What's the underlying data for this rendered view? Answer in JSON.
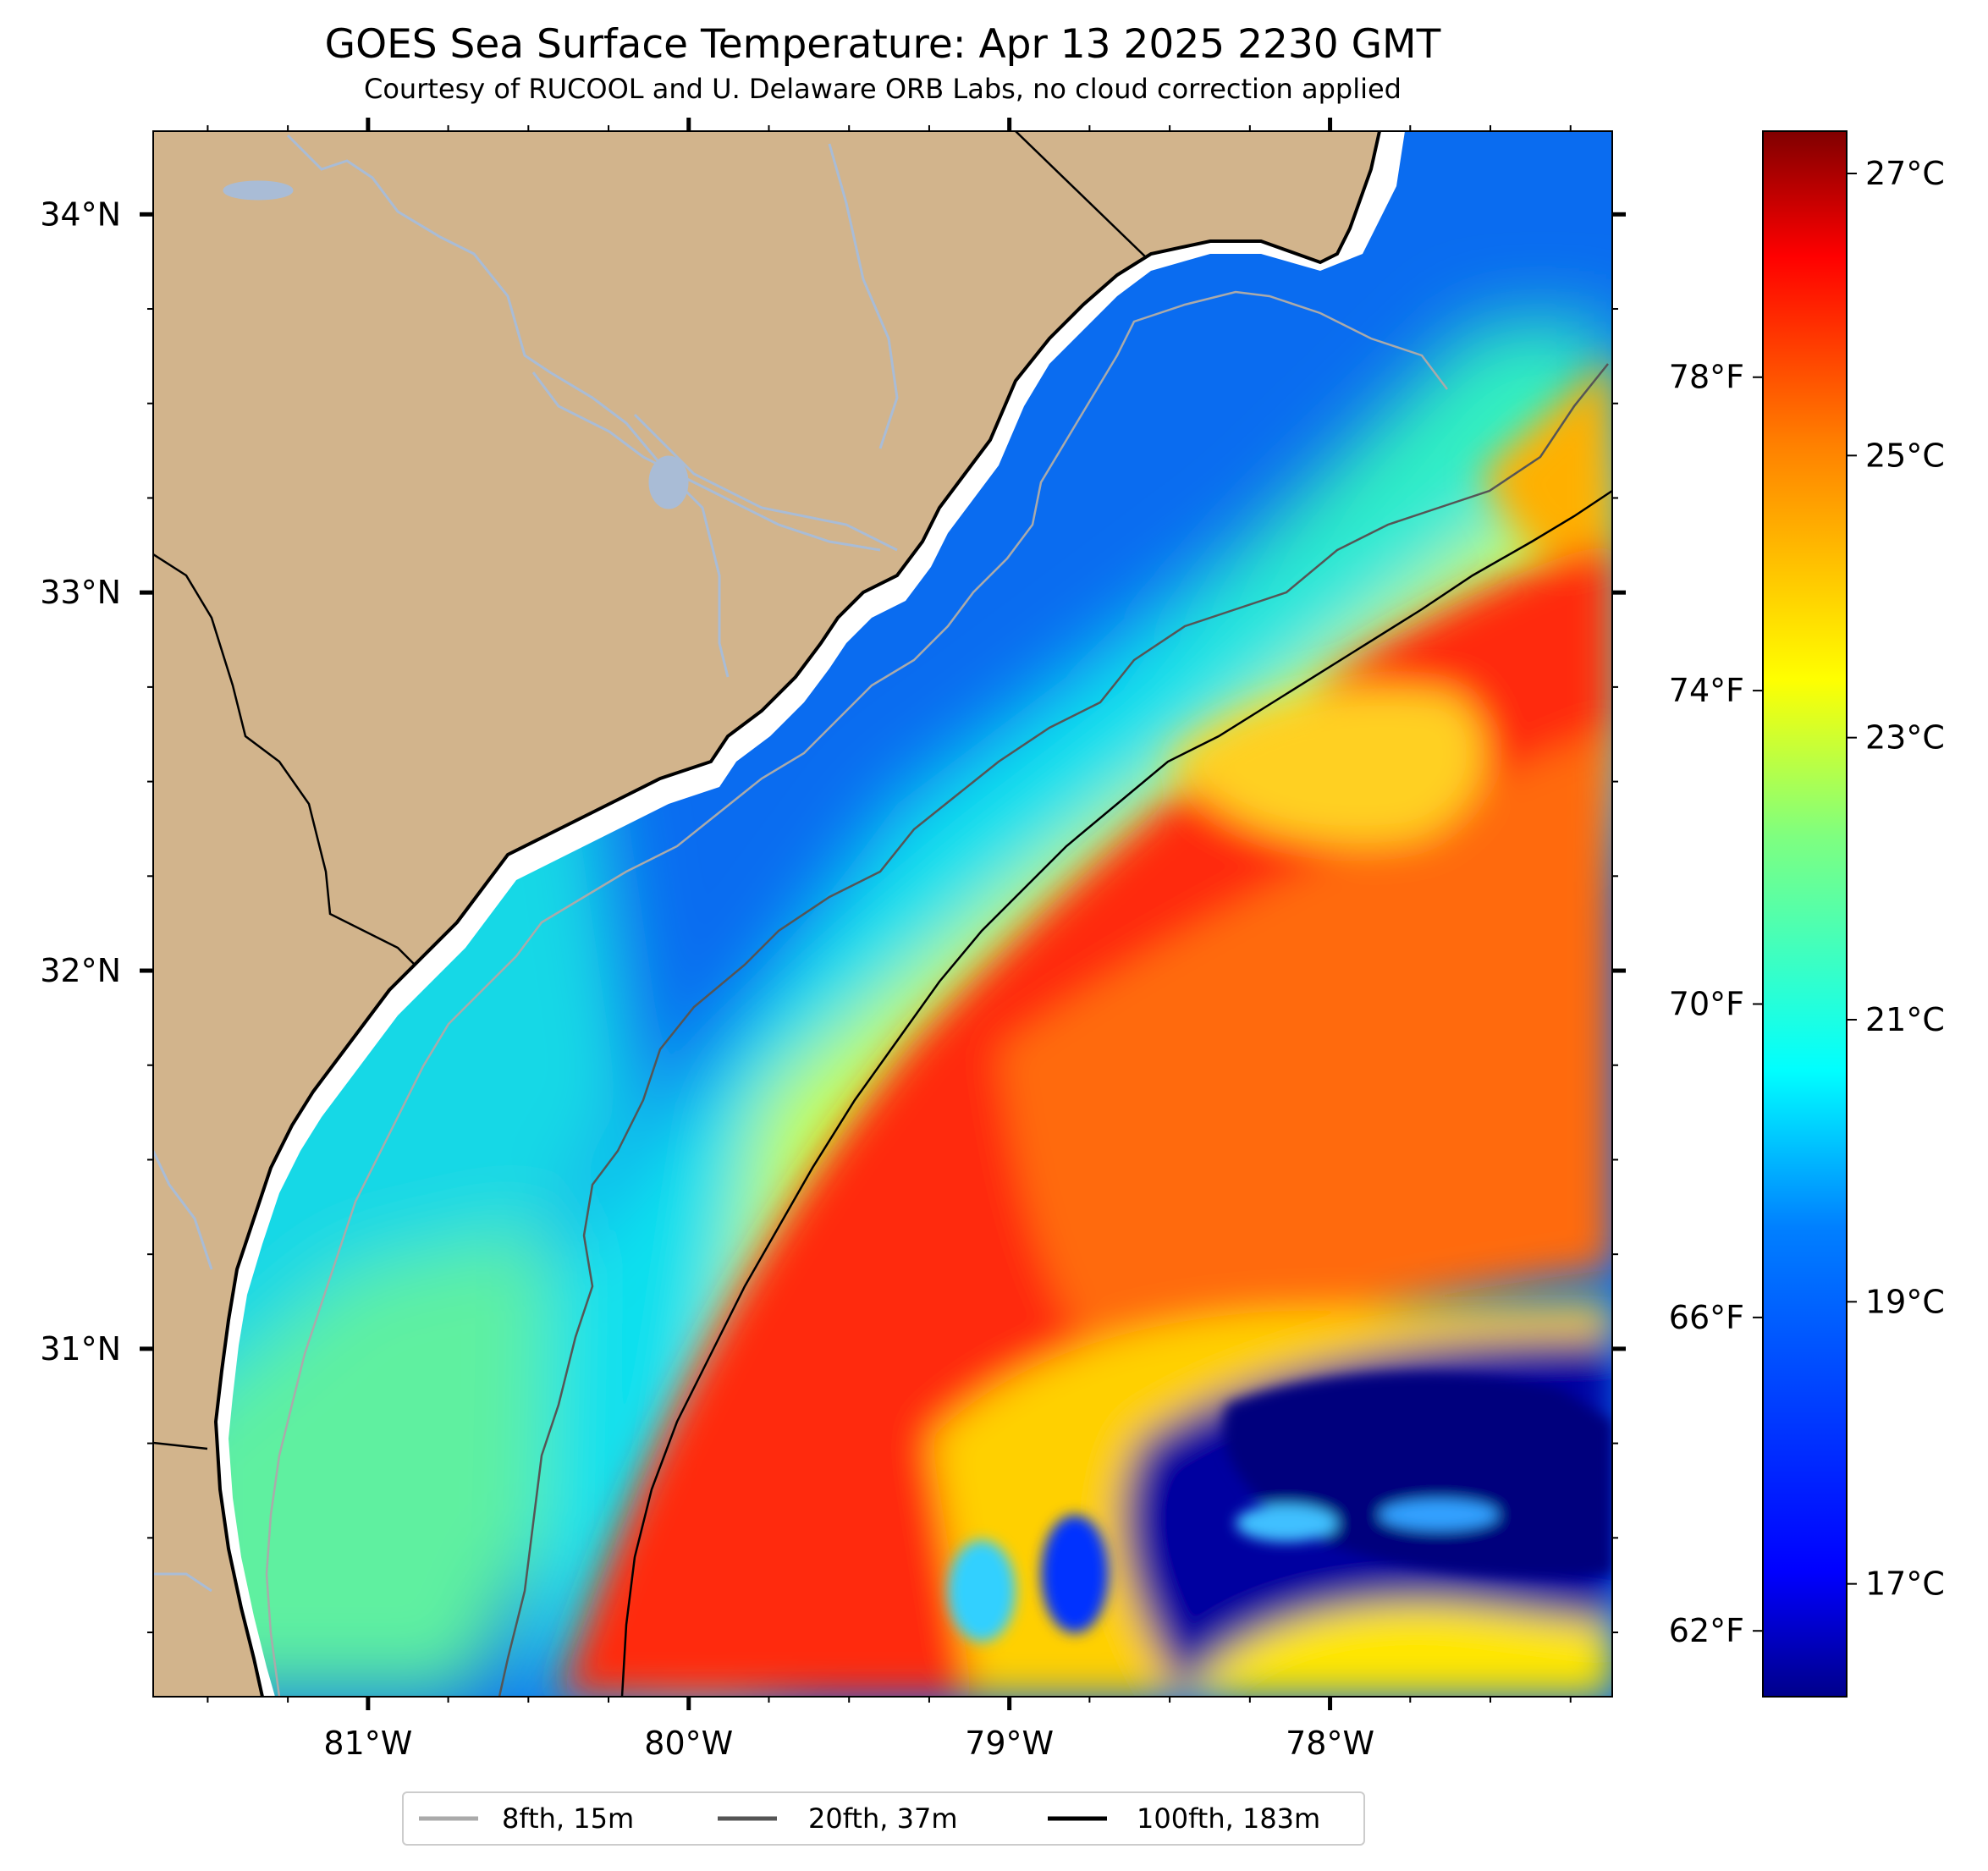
{
  "title": "GOES Sea Surface Temperature: Apr 13 2025 2230 GMT",
  "subtitle": "Courtesy of RUCOOL and U. Delaware ORB Labs, no cloud correction applied",
  "map": {
    "lon_range": [
      -81.67,
      -77.12
    ],
    "lat_range": [
      30.08,
      34.22
    ],
    "lon_ticks": [
      {
        "value": -81,
        "label": "81°W"
      },
      {
        "value": -80,
        "label": "80°W"
      },
      {
        "value": -79,
        "label": "79°W"
      },
      {
        "value": -78,
        "label": "78°W"
      }
    ],
    "lat_ticks": [
      {
        "value": 34,
        "label": "34°N"
      },
      {
        "value": 33,
        "label": "33°N"
      },
      {
        "value": 32,
        "label": "32°N"
      },
      {
        "value": 31,
        "label": "31°N"
      }
    ],
    "colors": {
      "land": "#d2b48c",
      "rivers": "#a9bcd6",
      "coastline": "#000000"
    }
  },
  "colorbar": {
    "colormap": "jet",
    "range_c": [
      16.2,
      27.3
    ],
    "celsius_ticks": [
      {
        "value": 17,
        "label": "17°C"
      },
      {
        "value": 19,
        "label": "19°C"
      },
      {
        "value": 21,
        "label": "21°C"
      },
      {
        "value": 23,
        "label": "23°C"
      },
      {
        "value": 25,
        "label": "25°C"
      },
      {
        "value": 27,
        "label": "27°C"
      }
    ],
    "fahrenheit_ticks": [
      {
        "value": 62,
        "label": "62°F"
      },
      {
        "value": 66,
        "label": "66°F"
      },
      {
        "value": 70,
        "label": "70°F"
      },
      {
        "value": 74,
        "label": "74°F"
      },
      {
        "value": 78,
        "label": "78°F"
      }
    ]
  },
  "legend": {
    "placement": "bottom-center",
    "items": [
      {
        "label": "8fth, 15m",
        "color": "#aaaaaa"
      },
      {
        "label": "20fth, 37m",
        "color": "#555555"
      },
      {
        "label": "100fth, 183m",
        "color": "#000000"
      }
    ]
  }
}
